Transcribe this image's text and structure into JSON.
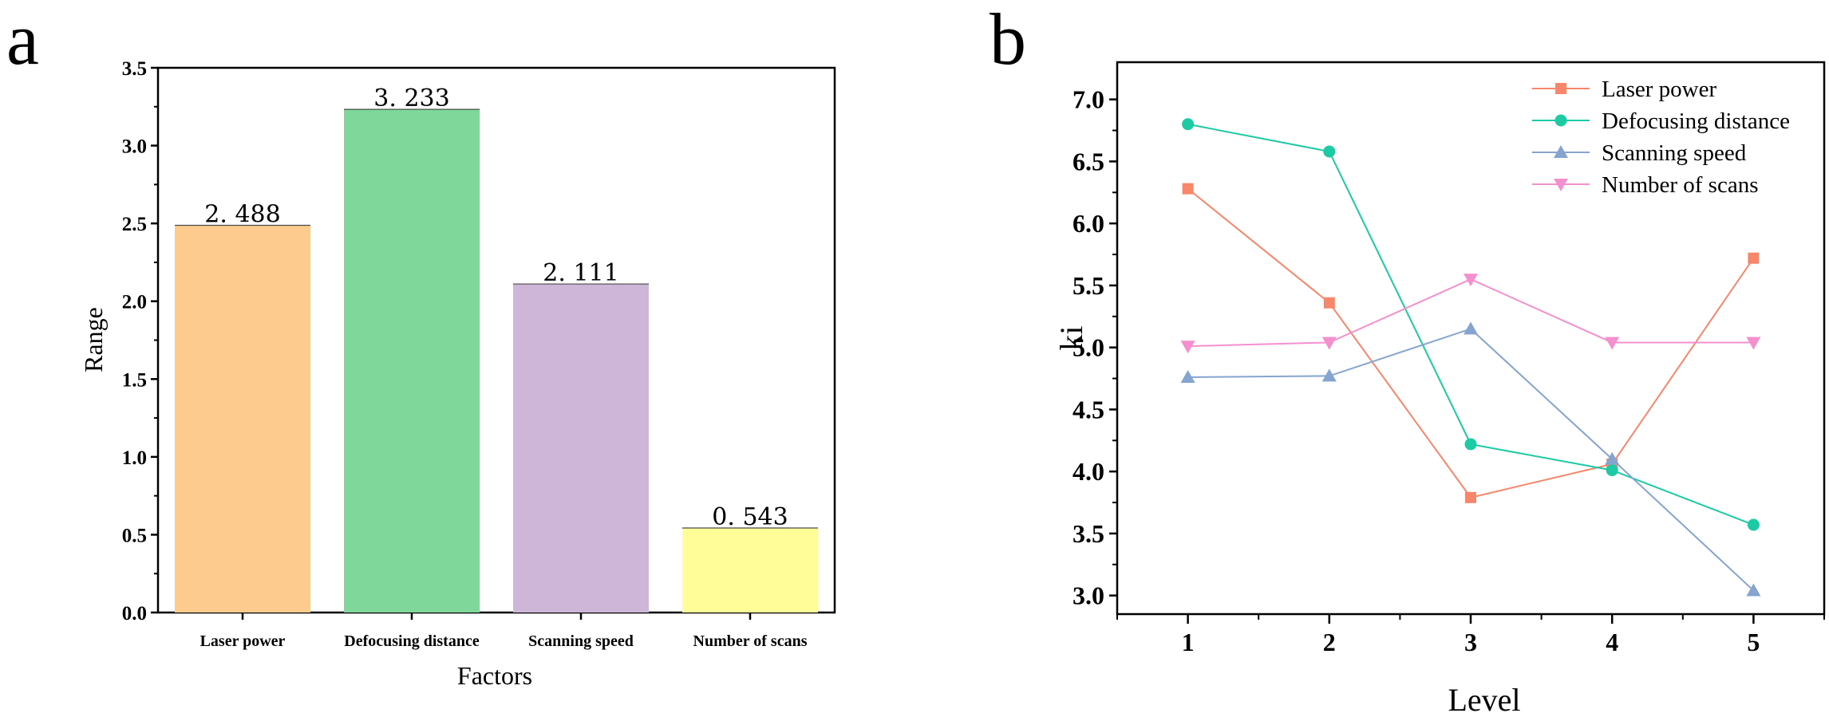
{
  "colors": {
    "laser": "#f7866b",
    "defocus": "#1ccaa3",
    "speed": "#85a4d0",
    "scans": "#f590cf",
    "bar_laser": "#fdcb8e",
    "bar_defocus": "#7fd89a",
    "bar_speed": "#ceb6d9",
    "bar_scans": "#fefd98"
  },
  "panel_a": {
    "letter": "a"
  },
  "panel_b": {
    "letter": "b"
  },
  "chart_data": [
    {
      "type": "bar",
      "categories": [
        "Laser power",
        "Defocusing distance",
        "Scanning speed",
        "Number of scans"
      ],
      "values": [
        2.488,
        3.233,
        2.111,
        0.543
      ],
      "data_labels": [
        "2. 488",
        "3. 233",
        "2. 111",
        "0. 543"
      ],
      "yticks": [
        "0.0",
        "0.5",
        "1.0",
        "1.5",
        "2.0",
        "2.5",
        "3.0",
        "3.5"
      ],
      "xlabel": "Factors",
      "ylabel": "Range",
      "ylim": [
        0,
        3.5
      ],
      "grid": false
    },
    {
      "type": "line",
      "x": [
        1,
        2,
        3,
        4,
        5
      ],
      "xticks": [
        "1",
        "2",
        "3",
        "4",
        "5"
      ],
      "yticks": [
        "3.0",
        "3.5",
        "4.0",
        "4.5",
        "5.0",
        "5.5",
        "6.0",
        "6.5",
        "7.0"
      ],
      "xlabel": "Level",
      "ylabel": "ki",
      "xlim": [
        0.5,
        5.5
      ],
      "ylim": [
        2.85,
        7.3
      ],
      "legend": "top-right",
      "grid": false,
      "series": [
        {
          "name": "Laser power",
          "marker": "square",
          "values": [
            6.28,
            5.36,
            3.79,
            4.06,
            5.72
          ]
        },
        {
          "name": "Defocusing distance",
          "marker": "circle",
          "values": [
            6.8,
            6.58,
            4.22,
            4.01,
            3.57
          ]
        },
        {
          "name": "Scanning speed",
          "marker": "triangle-up",
          "values": [
            4.76,
            4.77,
            5.15,
            4.1,
            3.04
          ]
        },
        {
          "name": "Number of scans",
          "marker": "triangle-down",
          "values": [
            5.01,
            5.04,
            5.55,
            5.04,
            5.04
          ]
        }
      ]
    }
  ]
}
